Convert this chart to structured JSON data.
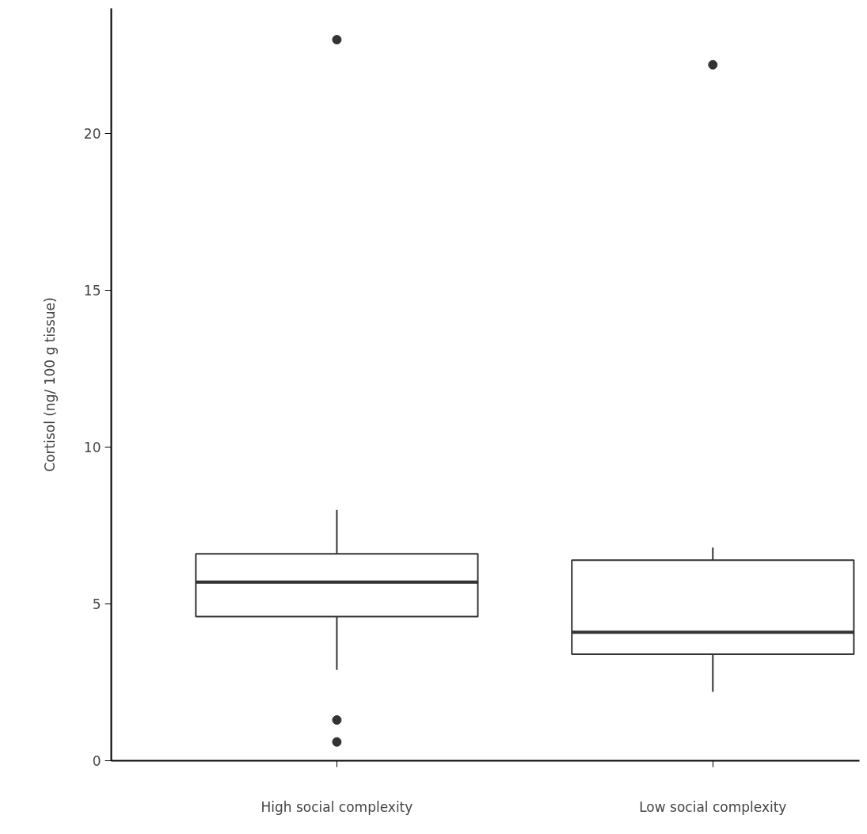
{
  "chart_data": {
    "type": "box",
    "ylabel": "Cortisol (ng/ 100 g tissue)",
    "categories": [
      "High social complexity",
      "Low social complexity"
    ],
    "boxes": [
      {
        "low": 2.9,
        "q1": 4.6,
        "median": 5.7,
        "q3": 6.6,
        "high": 8.0,
        "outliers": [
          23.0,
          1.3,
          0.6
        ]
      },
      {
        "low": 2.2,
        "q1": 3.4,
        "median": 4.1,
        "q3": 6.4,
        "high": 6.8,
        "outliers": [
          22.2
        ]
      }
    ],
    "color": "#333333",
    "ylim": [
      0,
      24
    ],
    "yticks": [
      0,
      5,
      10,
      15,
      20
    ],
    "grid": false
  }
}
